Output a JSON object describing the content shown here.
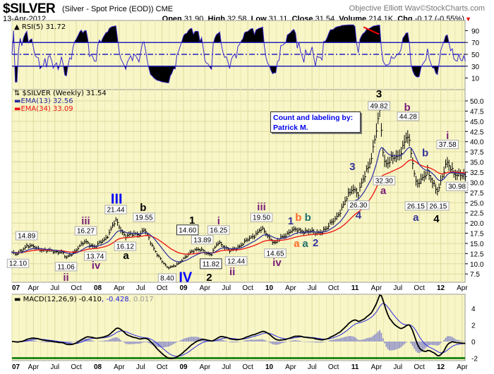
{
  "header": {
    "ticker": "$SILVER",
    "description": "(Silver - Spot Price (EOD)) CME",
    "date": "13-Apr-2012",
    "open_label": "Open",
    "open": "31.90",
    "high_label": "High",
    "high": "32.58",
    "low_label": "Low",
    "low": "31.11",
    "close_label": "Close",
    "close": "31.54",
    "volume_label": "Volume",
    "volume": "214.1K",
    "chg_label": "Chg",
    "chg": "-0.17 (-0.55%)",
    "brand": "Objective Elliott Wav",
    "brand_suffix": "©StockCharts.com"
  },
  "count_box": {
    "line1": "Count and labeling by:",
    "line2": "Patrick M."
  },
  "chart_data": {
    "type": "ohlc",
    "title": "$SILVER (Weekly) 31.54",
    "colors": {
      "background": "#f8f6c6",
      "grid": "#ddd9a0",
      "ema13": "#2a2aa0",
      "ema34": "#ee1111",
      "rsi": "#3a2ad0",
      "macd": "#000000",
      "signal": "#2a2ae0",
      "hist": "#9a9ac8",
      "green": "#007700"
    },
    "legend": {
      "price": "$SILVER (Weekly) 31.54",
      "ema13": "EMA(13) 32.56",
      "ema34": "EMA(34) 33.09"
    },
    "rsi": {
      "label": "RSI(5) 31.72",
      "levels": [
        70,
        50,
        30
      ],
      "ticks": [
        "90",
        "70",
        "50",
        "30",
        "10"
      ],
      "tick_values": [
        90,
        70,
        50,
        30,
        10
      ],
      "trendline": [
        [
          2011.1,
          96
        ],
        [
          2011.28,
          84
        ]
      ]
    },
    "macd": {
      "label": "MACD(12,26,9)",
      "macd": "-0.410",
      "signal": "-0.428",
      "hist": "0.017",
      "ticks": [
        "4",
        "2",
        "0",
        "-2"
      ],
      "tick_values": [
        4,
        2,
        0,
        -2
      ],
      "support": -2
    },
    "y_ticks": [
      "50.0",
      "47.5",
      "45.0",
      "42.5",
      "40.0",
      "37.5",
      "35.0",
      "32.5",
      "30.0",
      "27.5",
      "25.0",
      "22.5",
      "20.0",
      "17.5",
      "15.0",
      "12.5",
      "10.0",
      "7.5"
    ],
    "y_tick_values": [
      50,
      47.5,
      45,
      42.5,
      40,
      37.5,
      35,
      32.5,
      30,
      27.5,
      25,
      22.5,
      20,
      17.5,
      15,
      12.5,
      10,
      7.5
    ],
    "x_ticks": [
      "07",
      "Apr",
      "Jul",
      "Oct",
      "08",
      "Apr",
      "Jul",
      "Oct",
      "09",
      "Apr",
      "Jul",
      "Oct",
      "10",
      "Apr",
      "Jul",
      "Oct",
      "11",
      "Apr",
      "Jul",
      "Oct",
      "12",
      "Apr"
    ],
    "x_range": [
      2007.0,
      2012.3
    ],
    "price_path": [
      [
        2007.0,
        12.8
      ],
      [
        2007.05,
        12.1
      ],
      [
        2007.17,
        14.5
      ],
      [
        2007.4,
        13.2
      ],
      [
        2007.58,
        12.9
      ],
      [
        2007.63,
        11.3
      ],
      [
        2007.86,
        15.5
      ],
      [
        2007.97,
        14.0
      ],
      [
        2008.1,
        16.5
      ],
      [
        2008.21,
        20.5
      ],
      [
        2008.32,
        16.8
      ],
      [
        2008.5,
        17.5
      ],
      [
        2008.54,
        18.5
      ],
      [
        2008.62,
        15.0
      ],
      [
        2008.75,
        10.5
      ],
      [
        2008.81,
        9.0
      ],
      [
        2008.95,
        10.0
      ],
      [
        2009.08,
        13.0
      ],
      [
        2009.22,
        13.5
      ],
      [
        2009.32,
        12.0
      ],
      [
        2009.41,
        15.5
      ],
      [
        2009.54,
        13.0
      ],
      [
        2009.7,
        15.0
      ],
      [
        2009.91,
        18.5
      ],
      [
        2010.07,
        15.0
      ],
      [
        2010.25,
        18.2
      ],
      [
        2010.45,
        18.0
      ],
      [
        2010.54,
        17.5
      ],
      [
        2010.67,
        18.5
      ],
      [
        2010.85,
        23.5
      ],
      [
        2010.97,
        29.0
      ],
      [
        2011.04,
        27.0
      ],
      [
        2011.2,
        37.0
      ],
      [
        2011.29,
        47.0
      ],
      [
        2011.34,
        35.0
      ],
      [
        2011.5,
        36.0
      ],
      [
        2011.61,
        42.0
      ],
      [
        2011.71,
        30.0
      ],
      [
        2011.85,
        32.0
      ],
      [
        2011.97,
        28.0
      ],
      [
        2012.08,
        35.0
      ],
      [
        2012.19,
        31.5
      ],
      [
        2012.28,
        31.5
      ]
    ],
    "annotations": [
      {
        "text": "12.10",
        "t": 2007.07,
        "p": 10.1,
        "kind": "box"
      },
      {
        "text": "14.89",
        "t": 2007.17,
        "p": 16.9,
        "kind": "box"
      },
      {
        "text": "11.06",
        "t": 2007.63,
        "p": 9.3,
        "kind": "box"
      },
      {
        "text": "ii",
        "t": 2007.63,
        "p": 6.7,
        "kind": "wave",
        "color": "#7b1f7b"
      },
      {
        "text": "16.27",
        "t": 2007.86,
        "p": 18.1,
        "kind": "box"
      },
      {
        "text": "iii",
        "t": 2007.86,
        "p": 20.5,
        "kind": "wave",
        "color": "#7b1f7b"
      },
      {
        "text": "13.74",
        "t": 2007.97,
        "p": 11.9,
        "kind": "box"
      },
      {
        "text": "iv",
        "t": 2007.98,
        "p": 9.6,
        "kind": "wave",
        "color": "#7b1f7b"
      },
      {
        "text": "21.44",
        "t": 2008.21,
        "p": 23.3,
        "kind": "box"
      },
      {
        "text": "III",
        "t": 2008.22,
        "p": 25.4,
        "kind": "big",
        "color": "#0000ff"
      },
      {
        "text": "16.12",
        "t": 2008.32,
        "p": 14.3,
        "kind": "box"
      },
      {
        "text": "a",
        "t": 2008.33,
        "p": 12.6,
        "kind": "wave",
        "color": "#000000"
      },
      {
        "text": "19.55",
        "t": 2008.54,
        "p": 21.4,
        "kind": "box"
      },
      {
        "text": "b",
        "t": 2008.53,
        "p": 23.5,
        "kind": "wave",
        "color": "#000000"
      },
      {
        "text": "8.40",
        "t": 2008.81,
        "p": 6.5,
        "kind": "box"
      },
      {
        "text": "IV",
        "t": 2008.99,
        "p": 6.0,
        "kind": "big",
        "color": "#0000ff"
      },
      {
        "text": "14.60",
        "t": 2009.08,
        "p": 17.8,
        "kind": "box2"
      },
      {
        "text": "1",
        "t": 2009.1,
        "p": 20.7,
        "kind": "wave",
        "color": "#000000"
      },
      {
        "text": "13.89",
        "t": 2009.22,
        "p": 15.9,
        "kind": "box"
      },
      {
        "text": "11.82",
        "t": 2009.32,
        "p": 10.0,
        "kind": "box2"
      },
      {
        "text": "2",
        "t": 2009.3,
        "p": 6.7,
        "kind": "wave",
        "color": "#000000"
      },
      {
        "text": "16.25",
        "t": 2009.41,
        "p": 18.3,
        "kind": "box"
      },
      {
        "text": "i",
        "t": 2009.41,
        "p": 20.5,
        "kind": "wave",
        "color": "#7b1f7b"
      },
      {
        "text": "12.44",
        "t": 2009.54,
        "p": 10.7,
        "kind": "box"
      },
      {
        "text": "ii",
        "t": 2009.52,
        "p": 8.6,
        "kind": "wave",
        "color": "#7b1f7b"
      },
      {
        "text": "iii",
        "t": 2009.91,
        "p": 24.0,
        "kind": "wave",
        "color": "#7b1f7b"
      },
      {
        "text": "19.50",
        "t": 2009.91,
        "p": 21.4,
        "kind": "box"
      },
      {
        "text": "14.65",
        "t": 2010.07,
        "p": 12.6,
        "kind": "box"
      },
      {
        "text": "iv",
        "t": 2010.09,
        "p": 10.3,
        "kind": "wave",
        "color": "#7b1f7b"
      },
      {
        "text": "1",
        "t": 2010.25,
        "p": 20.5,
        "kind": "wave",
        "color": "#333399"
      },
      {
        "text": "b",
        "t": 2010.34,
        "p": 21.4,
        "kind": "wave",
        "color": "#ff6a2a"
      },
      {
        "text": "b",
        "t": 2010.45,
        "p": 21.4,
        "kind": "wave",
        "color": "#1e7070"
      },
      {
        "text": "a",
        "t": 2010.32,
        "p": 15.0,
        "kind": "wave",
        "color": "#ff6a2a"
      },
      {
        "text": "a",
        "t": 2010.42,
        "p": 15.0,
        "kind": "wave",
        "color": "#1e7070"
      },
      {
        "text": "2",
        "t": 2010.54,
        "p": 15.2,
        "kind": "wave",
        "color": "#333399"
      },
      {
        "text": "3",
        "t": 2010.97,
        "p": 33.9,
        "kind": "wave",
        "color": "#333399"
      },
      {
        "text": "26.30",
        "t": 2011.04,
        "p": 24.4,
        "kind": "box"
      },
      {
        "text": "4",
        "t": 2011.04,
        "p": 21.9,
        "kind": "wave",
        "color": "#333399"
      },
      {
        "text": "3",
        "t": 2011.28,
        "p": 51.7,
        "kind": "wave",
        "color": "#000000"
      },
      {
        "text": "49.82",
        "t": 2011.28,
        "p": 48.8,
        "kind": "box"
      },
      {
        "text": "32.30",
        "t": 2011.34,
        "p": 30.4,
        "kind": "box"
      },
      {
        "text": "a",
        "t": 2011.33,
        "p": 28.0,
        "kind": "wave",
        "color": "#7b1f7b"
      },
      {
        "text": "b",
        "t": 2011.61,
        "p": 47.9,
        "kind": "wave",
        "color": "#7b1f7b"
      },
      {
        "text": "44.28",
        "t": 2011.62,
        "p": 46.2,
        "kind": "box"
      },
      {
        "text": "b",
        "t": 2011.82,
        "p": 37.3,
        "kind": "wave",
        "color": "#333399"
      },
      {
        "text": "26.15",
        "t": 2011.71,
        "p": 24.2,
        "kind": "box"
      },
      {
        "text": "a",
        "t": 2011.71,
        "p": 21.4,
        "kind": "wave",
        "color": "#333399"
      },
      {
        "text": "26.15",
        "t": 2011.97,
        "p": 24.2,
        "kind": "box"
      },
      {
        "text": "4",
        "t": 2011.95,
        "p": 21.1,
        "kind": "wave",
        "color": "#000000"
      },
      {
        "text": "i",
        "t": 2012.08,
        "p": 41.5,
        "kind": "wave",
        "color": "#7b1f7b"
      },
      {
        "text": "37.58",
        "t": 2012.08,
        "p": 39.3,
        "kind": "box"
      },
      {
        "text": "30.98",
        "t": 2012.19,
        "p": 29.0,
        "kind": "box"
      }
    ]
  }
}
